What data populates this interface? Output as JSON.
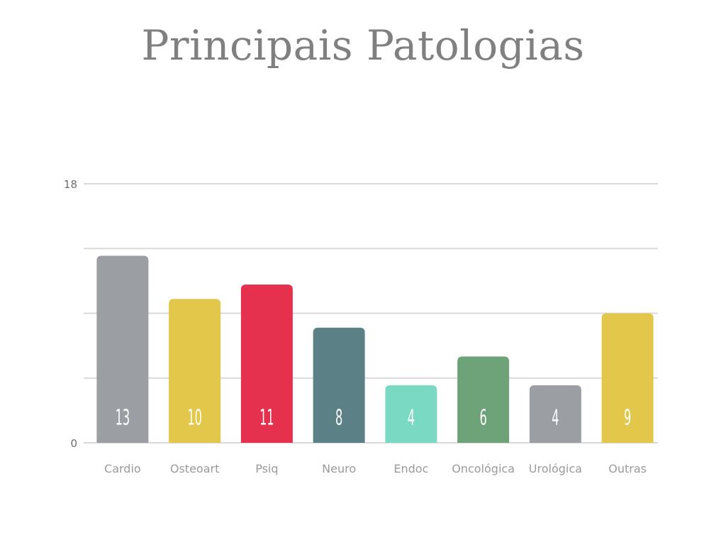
{
  "title": "Principais Patologias",
  "chart_data": {
    "type": "bar",
    "title": "Principais Patologias",
    "xlabel": "",
    "ylabel": "",
    "ylim": [
      0,
      18
    ],
    "y_ticks_labeled": [
      0,
      18
    ],
    "grid": true,
    "categories": [
      "Cardio",
      "Osteoart",
      "Psiq",
      "Neuro",
      "Endoc",
      "Oncológica",
      "Urológica",
      "Outras"
    ],
    "values": [
      13,
      10,
      11,
      8,
      4,
      6,
      4,
      9
    ],
    "colors": [
      "#9b9fa3",
      "#e3c74b",
      "#e5304e",
      "#5b8086",
      "#79d9c2",
      "#6ea379",
      "#9b9fa3",
      "#e3c74b"
    ]
  }
}
